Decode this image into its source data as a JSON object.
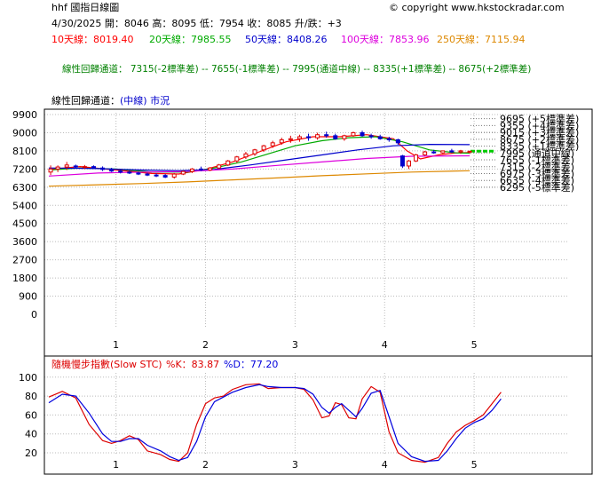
{
  "header": {
    "title": "hhf  國指日線圖",
    "copyright": "© copyright www.hkstockradar.com",
    "ohlc": "4/30/2025   開：8046   高：8095   低：7954   收：8085   升/跌：+3",
    "ma10": "10天線：8019.40",
    "ma20": "20天線：7985.55",
    "ma50": "50天線：8408.26",
    "ma100": "100天線：7853.96",
    "ma250": "250天線：7115.94",
    "regression_summary": "線性回歸通道： 7315(-2標準差) -- 7655(-1標準差) -- 7995(通道中線) -- 8335(+1標準差) -- 8675(+2標準差)",
    "channel_prefix": "線性回歸通道：",
    "channel_mid": "(中線)",
    "channel_suffix": "市況"
  },
  "colors": {
    "ma10": "#ff0000",
    "ma20": "#00aa00",
    "ma50": "#0000cc",
    "ma100": "#dd00dd",
    "ma250": "#dd8800",
    "summary": "#008000",
    "k": "#dd0000",
    "d": "#0000dd",
    "up_candle": "#dd0000",
    "down_candle": "#0000cc",
    "channel_highlight": "#00cc00"
  },
  "chart_data": [
    {
      "type": "candlestick",
      "ylim": [
        0,
        9900
      ],
      "y_ticks": [
        0,
        900,
        1800,
        2700,
        3600,
        4500,
        5400,
        6300,
        7200,
        8100,
        9000,
        9900
      ],
      "x_ticks": [
        "1",
        "2",
        "3",
        "4",
        "5"
      ],
      "x_range": [
        0.2,
        6.05
      ],
      "grid": true,
      "ohlc": [
        [
          0.27,
          7050,
          7380,
          6900,
          7200
        ],
        [
          0.35,
          7200,
          7380,
          7050,
          7300
        ],
        [
          0.45,
          7300,
          7550,
          7150,
          7400
        ],
        [
          0.55,
          7350,
          7420,
          7250,
          7300
        ],
        [
          0.65,
          7300,
          7400,
          7200,
          7320
        ],
        [
          0.75,
          7320,
          7380,
          7200,
          7250
        ],
        [
          0.85,
          7250,
          7330,
          7100,
          7180
        ],
        [
          0.95,
          7180,
          7260,
          7050,
          7100
        ],
        [
          1.05,
          7100,
          7200,
          6980,
          7050
        ],
        [
          1.15,
          7050,
          7120,
          6950,
          7000
        ],
        [
          1.25,
          7000,
          7060,
          6900,
          6950
        ],
        [
          1.35,
          6950,
          7020,
          6850,
          6900
        ],
        [
          1.45,
          6900,
          6980,
          6800,
          6880
        ],
        [
          1.55,
          6880,
          6950,
          6750,
          6800
        ],
        [
          1.65,
          6800,
          7000,
          6720,
          6950
        ],
        [
          1.75,
          6950,
          7120,
          6900,
          7080
        ],
        [
          1.85,
          7080,
          7250,
          7000,
          7200
        ],
        [
          1.95,
          7200,
          7320,
          7100,
          7150
        ],
        [
          2.05,
          7150,
          7300,
          7100,
          7250
        ],
        [
          2.15,
          7250,
          7450,
          7200,
          7400
        ],
        [
          2.25,
          7400,
          7650,
          7350,
          7600
        ],
        [
          2.35,
          7600,
          7850,
          7500,
          7800
        ],
        [
          2.45,
          7800,
          8050,
          7700,
          7950
        ],
        [
          2.55,
          7950,
          8200,
          7850,
          8150
        ],
        [
          2.65,
          8150,
          8400,
          8050,
          8350
        ],
        [
          2.75,
          8350,
          8600,
          8250,
          8500
        ],
        [
          2.85,
          8500,
          8750,
          8400,
          8650
        ],
        [
          2.95,
          8650,
          8850,
          8500,
          8700
        ],
        [
          3.05,
          8700,
          8900,
          8550,
          8800
        ],
        [
          3.15,
          8800,
          8950,
          8600,
          8750
        ],
        [
          3.25,
          8750,
          9000,
          8650,
          8900
        ],
        [
          3.35,
          8900,
          9050,
          8750,
          8850
        ],
        [
          3.45,
          8850,
          8950,
          8650,
          8700
        ],
        [
          3.55,
          8700,
          8900,
          8600,
          8850
        ],
        [
          3.65,
          8850,
          9050,
          8800,
          9000
        ],
        [
          3.75,
          9000,
          9100,
          8800,
          8850
        ],
        [
          3.85,
          8850,
          8950,
          8700,
          8800
        ],
        [
          3.95,
          8800,
          8900,
          8650,
          8700
        ],
        [
          4.05,
          8700,
          8800,
          8550,
          8650
        ],
        [
          4.15,
          8650,
          8700,
          8400,
          8500
        ],
        [
          4.2,
          7850,
          7900,
          7250,
          7350
        ],
        [
          4.27,
          7350,
          7650,
          7200,
          7600
        ],
        [
          4.35,
          7600,
          7950,
          7550,
          7900
        ],
        [
          4.45,
          7900,
          8100,
          7850,
          8050
        ],
        [
          4.55,
          8050,
          8150,
          7950,
          8000
        ],
        [
          4.65,
          8000,
          8120,
          7950,
          8100
        ],
        [
          4.75,
          8100,
          8200,
          8000,
          8050
        ],
        [
          4.85,
          8050,
          8150,
          7950,
          8100
        ],
        [
          4.95,
          8046,
          8095,
          7954,
          8085
        ]
      ],
      "series": [
        {
          "name": "10天線",
          "color": "#ff0000",
          "points": [
            [
              0.25,
              7180
            ],
            [
              0.6,
              7320
            ],
            [
              1.0,
              7150
            ],
            [
              1.4,
              6980
            ],
            [
              1.7,
              6950
            ],
            [
              2.0,
              7180
            ],
            [
              2.3,
              7550
            ],
            [
              2.6,
              8050
            ],
            [
              2.9,
              8550
            ],
            [
              3.2,
              8800
            ],
            [
              3.5,
              8800
            ],
            [
              3.8,
              8900
            ],
            [
              4.1,
              8700
            ],
            [
              4.25,
              8100
            ],
            [
              4.4,
              7700
            ],
            [
              4.6,
              7900
            ],
            [
              4.8,
              8000
            ],
            [
              4.95,
              8019
            ]
          ]
        },
        {
          "name": "20天線",
          "color": "#00aa00",
          "points": [
            [
              0.25,
              7150
            ],
            [
              0.6,
              7250
            ],
            [
              1.0,
              7200
            ],
            [
              1.4,
              7050
            ],
            [
              1.8,
              7050
            ],
            [
              2.1,
              7250
            ],
            [
              2.4,
              7550
            ],
            [
              2.7,
              7950
            ],
            [
              3.0,
              8350
            ],
            [
              3.3,
              8600
            ],
            [
              3.6,
              8750
            ],
            [
              3.9,
              8800
            ],
            [
              4.2,
              8550
            ],
            [
              4.5,
              8150
            ],
            [
              4.8,
              8000
            ],
            [
              4.95,
              7986
            ]
          ]
        },
        {
          "name": "50天線",
          "color": "#0000cc",
          "points": [
            [
              0.25,
              7250
            ],
            [
              0.8,
              7220
            ],
            [
              1.3,
              7150
            ],
            [
              1.7,
              7120
            ],
            [
              2.1,
              7180
            ],
            [
              2.5,
              7400
            ],
            [
              2.9,
              7650
            ],
            [
              3.3,
              7900
            ],
            [
              3.7,
              8150
            ],
            [
              4.1,
              8350
            ],
            [
              4.5,
              8420
            ],
            [
              4.95,
              8408
            ]
          ]
        },
        {
          "name": "100天線",
          "color": "#dd00dd",
          "points": [
            [
              0.25,
              6850
            ],
            [
              0.8,
              7000
            ],
            [
              1.3,
              7050
            ],
            [
              1.8,
              7080
            ],
            [
              2.3,
              7200
            ],
            [
              2.8,
              7380
            ],
            [
              3.3,
              7550
            ],
            [
              3.8,
              7720
            ],
            [
              4.3,
              7830
            ],
            [
              4.95,
              7854
            ]
          ]
        },
        {
          "name": "250天線",
          "color": "#dd8800",
          "points": [
            [
              0.25,
              6350
            ],
            [
              0.8,
              6420
            ],
            [
              1.3,
              6480
            ],
            [
              1.8,
              6560
            ],
            [
              2.3,
              6660
            ],
            [
              2.8,
              6760
            ],
            [
              3.3,
              6870
            ],
            [
              3.8,
              6960
            ],
            [
              4.3,
              7050
            ],
            [
              4.95,
              7116
            ]
          ]
        }
      ],
      "channel_labels": [
        "9695 (+5標準差)",
        "9355 (+4標準差)",
        "9015 (+3標準差)",
        "8675 (+2標準差)",
        "8335 (+1標準差)",
        "7995 (通道中線)",
        "7655 (-1標準差)",
        "7315 (-2標準差)",
        "6975 (-3標準差)",
        "6635 (-4標準差)",
        "6295 (-5標準差)"
      ],
      "channel_values": [
        9695,
        9355,
        9015,
        8675,
        8335,
        7995,
        7655,
        7315,
        6975,
        6635,
        6295
      ]
    },
    {
      "type": "line",
      "title": "隨機慢步指數(Slow STC)",
      "k_label": "%K：83.87",
      "d_label": "%D：77.20",
      "ylim": [
        0,
        105
      ],
      "y_ticks": [
        20,
        40,
        60,
        80,
        100
      ],
      "x_ticks": [
        "1",
        "2",
        "3",
        "4",
        "5"
      ],
      "x_range": [
        0.2,
        6.05
      ],
      "series": [
        {
          "name": "%K",
          "color": "#dd0000",
          "points": [
            [
              0.25,
              79
            ],
            [
              0.4,
              85
            ],
            [
              0.55,
              78
            ],
            [
              0.7,
              50
            ],
            [
              0.85,
              33
            ],
            [
              0.95,
              30
            ],
            [
              1.05,
              33
            ],
            [
              1.15,
              38
            ],
            [
              1.25,
              34
            ],
            [
              1.35,
              22
            ],
            [
              1.5,
              18
            ],
            [
              1.6,
              13
            ],
            [
              1.7,
              11
            ],
            [
              1.8,
              20
            ],
            [
              1.9,
              50
            ],
            [
              2.0,
              72
            ],
            [
              2.1,
              78
            ],
            [
              2.2,
              80
            ],
            [
              2.3,
              87
            ],
            [
              2.45,
              92
            ],
            [
              2.6,
              93
            ],
            [
              2.7,
              88
            ],
            [
              2.85,
              89
            ],
            [
              3.0,
              89
            ],
            [
              3.1,
              87
            ],
            [
              3.2,
              76
            ],
            [
              3.3,
              57
            ],
            [
              3.38,
              59
            ],
            [
              3.45,
              73
            ],
            [
              3.52,
              71
            ],
            [
              3.6,
              57
            ],
            [
              3.68,
              56
            ],
            [
              3.75,
              77
            ],
            [
              3.85,
              90
            ],
            [
              3.95,
              84
            ],
            [
              4.05,
              42
            ],
            [
              4.15,
              20
            ],
            [
              4.3,
              12
            ],
            [
              4.45,
              10
            ],
            [
              4.6,
              15
            ],
            [
              4.7,
              30
            ],
            [
              4.8,
              42
            ],
            [
              4.9,
              49
            ],
            [
              5.0,
              54
            ],
            [
              5.1,
              60
            ],
            [
              5.2,
              72
            ],
            [
              5.3,
              84
            ]
          ]
        },
        {
          "name": "%D",
          "color": "#0000dd",
          "points": [
            [
              0.25,
              73
            ],
            [
              0.4,
              82
            ],
            [
              0.55,
              80
            ],
            [
              0.7,
              62
            ],
            [
              0.85,
              40
            ],
            [
              0.95,
              32
            ],
            [
              1.05,
              32
            ],
            [
              1.15,
              35
            ],
            [
              1.25,
              35
            ],
            [
              1.35,
              28
            ],
            [
              1.5,
              22
            ],
            [
              1.6,
              16
            ],
            [
              1.7,
              12
            ],
            [
              1.8,
              15
            ],
            [
              1.9,
              32
            ],
            [
              2.0,
              58
            ],
            [
              2.1,
              74
            ],
            [
              2.2,
              79
            ],
            [
              2.3,
              84
            ],
            [
              2.45,
              89
            ],
            [
              2.6,
              92
            ],
            [
              2.7,
              90
            ],
            [
              2.85,
              89
            ],
            [
              3.0,
              89
            ],
            [
              3.1,
              88
            ],
            [
              3.2,
              82
            ],
            [
              3.3,
              68
            ],
            [
              3.38,
              62
            ],
            [
              3.45,
              68
            ],
            [
              3.52,
              72
            ],
            [
              3.6,
              65
            ],
            [
              3.68,
              58
            ],
            [
              3.75,
              67
            ],
            [
              3.85,
              83
            ],
            [
              3.95,
              86
            ],
            [
              4.05,
              58
            ],
            [
              4.15,
              30
            ],
            [
              4.3,
              16
            ],
            [
              4.45,
              11
            ],
            [
              4.6,
              12
            ],
            [
              4.7,
              22
            ],
            [
              4.8,
              35
            ],
            [
              4.9,
              46
            ],
            [
              5.0,
              52
            ],
            [
              5.1,
              56
            ],
            [
              5.2,
              65
            ],
            [
              5.3,
              77
            ]
          ]
        }
      ]
    }
  ]
}
